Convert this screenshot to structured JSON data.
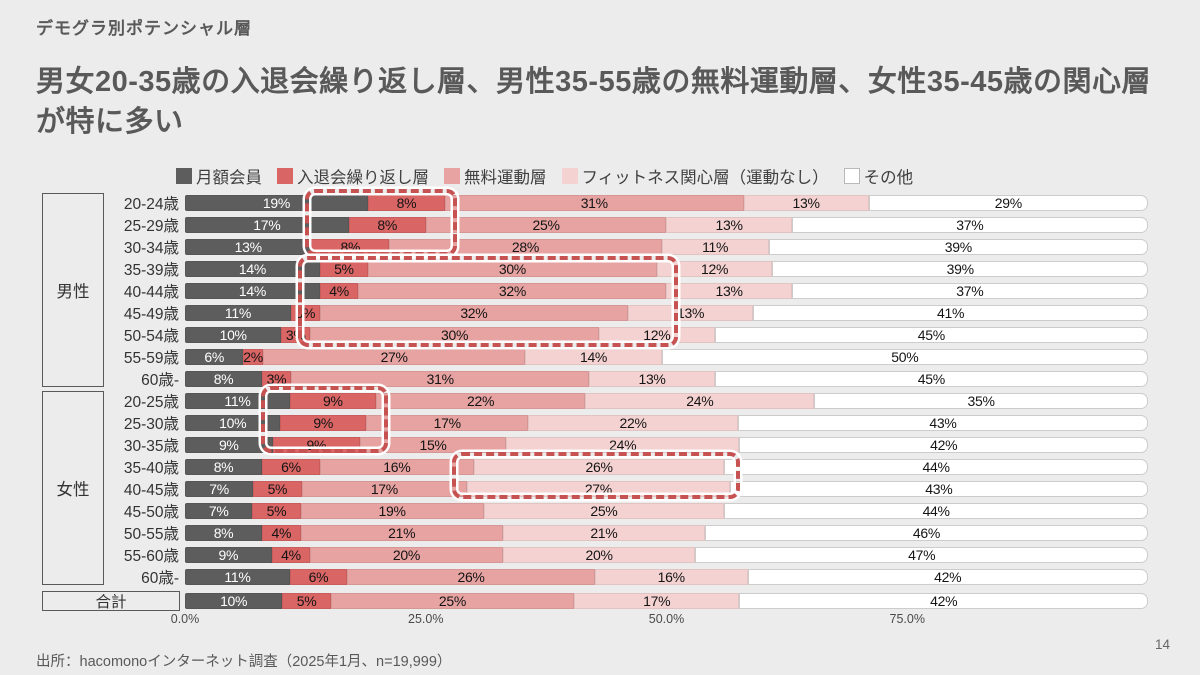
{
  "slide": {
    "kicker": "デモグラ別ポテンシャル層",
    "headline": "男女20-35歳の入退会繰り返し層、男性35-55歳の無料運動層、女性35-45歳の関心層が特に多い",
    "source": "出所：hacomonoインターネット調査（2025年1月、n=19,999）",
    "page_number": "14"
  },
  "chart_data": {
    "type": "bar",
    "stacked": true,
    "orientation": "horizontal",
    "unit": "%",
    "value_suffix": "%",
    "legend_position": "top",
    "series_names": [
      "月額会員",
      "入退会繰り返し層",
      "無料運動層",
      "フィットネス関心層（運動なし）",
      "その他"
    ],
    "series_colors": [
      "#5d5d5d",
      "#d96565",
      "#e6a3a1",
      "#f3d2d1",
      "#ffffff"
    ],
    "x_axis": {
      "ticks": [
        "0.0%",
        "25.0%",
        "50.0%",
        "75.0%"
      ],
      "tick_values": [
        0,
        25,
        50,
        75
      ],
      "range": [
        0,
        100
      ]
    },
    "groups": [
      {
        "label": "男性",
        "rows": [
          {
            "label": "20-24歳",
            "values": [
              19,
              8,
              31,
              13,
              29
            ]
          },
          {
            "label": "25-29歳",
            "values": [
              17,
              8,
              25,
              13,
              37
            ]
          },
          {
            "label": "30-34歳",
            "values": [
              13,
              8,
              28,
              11,
              39
            ]
          },
          {
            "label": "35-39歳",
            "values": [
              14,
              5,
              30,
              12,
              39
            ]
          },
          {
            "label": "40-44歳",
            "values": [
              14,
              4,
              32,
              13,
              37
            ]
          },
          {
            "label": "45-49歳",
            "values": [
              11,
              3,
              32,
              13,
              41
            ]
          },
          {
            "label": "50-54歳",
            "values": [
              10,
              3,
              30,
              12,
              45
            ]
          },
          {
            "label": "55-59歳",
            "values": [
              6,
              2,
              27,
              14,
              50
            ]
          },
          {
            "label": "60歳-",
            "values": [
              8,
              3,
              31,
              13,
              45
            ]
          }
        ]
      },
      {
        "label": "女性",
        "rows": [
          {
            "label": "20-25歳",
            "values": [
              11,
              9,
              22,
              24,
              35
            ]
          },
          {
            "label": "25-30歳",
            "values": [
              10,
              9,
              17,
              22,
              43
            ]
          },
          {
            "label": "30-35歳",
            "values": [
              9,
              9,
              15,
              24,
              42
            ]
          },
          {
            "label": "35-40歳",
            "values": [
              8,
              6,
              16,
              26,
              44
            ]
          },
          {
            "label": "40-45歳",
            "values": [
              7,
              5,
              17,
              27,
              43
            ]
          },
          {
            "label": "45-50歳",
            "values": [
              7,
              5,
              19,
              25,
              44
            ]
          },
          {
            "label": "50-55歳",
            "values": [
              8,
              4,
              21,
              21,
              46
            ]
          },
          {
            "label": "55-60歳",
            "values": [
              9,
              4,
              20,
              20,
              47
            ]
          },
          {
            "label": "60歳-",
            "values": [
              11,
              6,
              26,
              16,
              42
            ]
          }
        ]
      }
    ],
    "total_row": {
      "label": "合計",
      "values": [
        10,
        5,
        25,
        17,
        42
      ]
    },
    "annotations": [
      {
        "name": "male-20-34-churn-repeat-highlight",
        "color": "#c75252"
      },
      {
        "name": "male-35-54-free-exercise-highlight",
        "color": "#c75252"
      },
      {
        "name": "female-20-35-churn-repeat-highlight",
        "color": "#c75252"
      },
      {
        "name": "female-35-45-fitness-interest-highlight",
        "color": "#c75252"
      }
    ]
  }
}
